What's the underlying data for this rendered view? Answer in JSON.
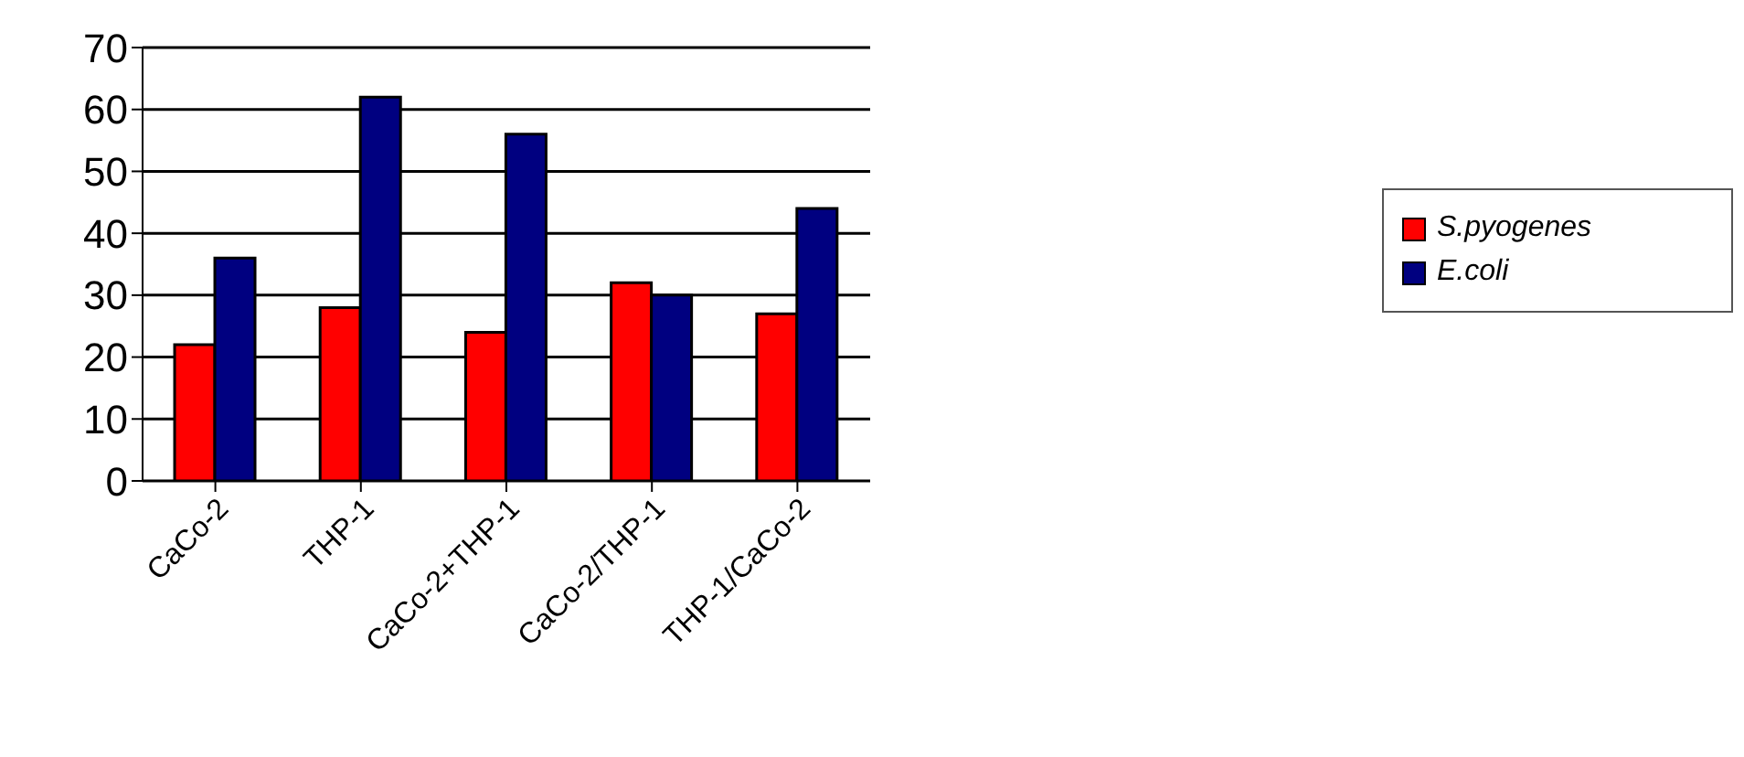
{
  "chart_data": {
    "type": "bar",
    "categories": [
      "CaCo-2",
      "THP-1",
      "CaCo-2+THP-1",
      "CaCo-2/THP-1",
      "THP-1/CaCo-2"
    ],
    "series": [
      {
        "name": "S.pyogenes",
        "color": "#ff0000",
        "values": [
          22,
          28,
          24,
          32,
          27
        ]
      },
      {
        "name": "E.coli",
        "color": "#000080",
        "values": [
          36,
          62,
          56,
          30,
          44
        ]
      }
    ],
    "ylim": [
      0,
      70
    ],
    "yticks": [
      0,
      10,
      20,
      30,
      40,
      50,
      60,
      70
    ],
    "grid": "y",
    "legend": "right"
  }
}
